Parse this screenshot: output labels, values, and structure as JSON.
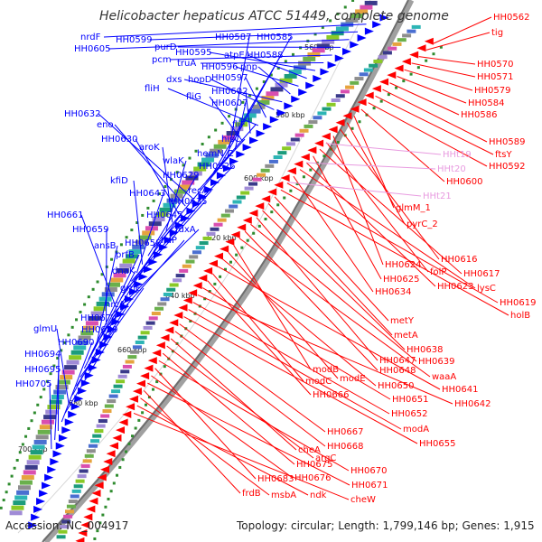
{
  "title": "Helicobacter hepaticus ATCC 51449, complete genome",
  "footer": {
    "accession": "Accession: NC_004917",
    "summary": "Topology: circular; Length: 1,799,146 bp; Genes: 1,915"
  },
  "ticks": [
    "560 kbp",
    "580 kbp",
    "600 kbp",
    "620 kbp",
    "640 kbp",
    "660 kbp",
    "680 kbp",
    "700 kbp"
  ],
  "colors": {
    "forward": "#0000ff",
    "reverse": "#ff0000",
    "rna": "#e89be0",
    "backbone": "#9a9a9a",
    "gc": "#2e8b2e"
  },
  "forward_labels": [
    "nrdF",
    "HH0599",
    "HH0605",
    "purD",
    "pcm",
    "truA",
    "HH0595",
    "atpE",
    "HH0596",
    "pnp",
    "dxs",
    "hopD",
    "HH0597",
    "fliH",
    "HH0602",
    "fliG",
    "HH0607",
    "HH0587",
    "HH0585",
    "HH0588",
    "fliF",
    "hisC",
    "HH0632",
    "eno",
    "HH0630",
    "aroK",
    "wlaK",
    "hemN_2",
    "HH0626",
    "HH0629",
    "kfiD",
    "HH0643",
    "recA",
    "HH0635",
    "HH0645",
    "HH0661",
    "fdxA",
    "HH0659",
    "lldP",
    "ansB",
    "HH0658",
    "prfB",
    "dnaK",
    "grpE",
    "hrcA",
    "HH0674",
    "glmU",
    "HH0689",
    "HH0690",
    "HH0694",
    "HH0695",
    "HH0705"
  ],
  "reverse_labels": [
    "HH0562",
    "tig",
    "HH0570",
    "HH0571",
    "HH0579",
    "HH0584",
    "HH0586",
    "HH0589",
    "ftsY",
    "HH0592",
    "HH0600",
    "glmM_1",
    "pyrC_2",
    "HH0616",
    "HH0624",
    "folP",
    "HH0617",
    "HH0625",
    "HH0623",
    "lysC",
    "HH0634",
    "HH0619",
    "holB",
    "metY",
    "metA",
    "HH0638",
    "HH0647",
    "HH0639",
    "HH0648",
    "waaA",
    "modB",
    "modE",
    "HH0650",
    "HH0641",
    "modC",
    "HH0666",
    "HH0651",
    "HH0642",
    "HH0652",
    "modA",
    "HH0655",
    "HH0667",
    "HH0668",
    "cheA",
    "argC",
    "HH0675",
    "HH0670",
    "HH0683",
    "HH0676",
    "HH0671",
    "frdB",
    "msbA",
    "ndk",
    "cheW"
  ],
  "rna_labels": [
    "HHt19",
    "HHt20",
    "HHt21"
  ]
}
